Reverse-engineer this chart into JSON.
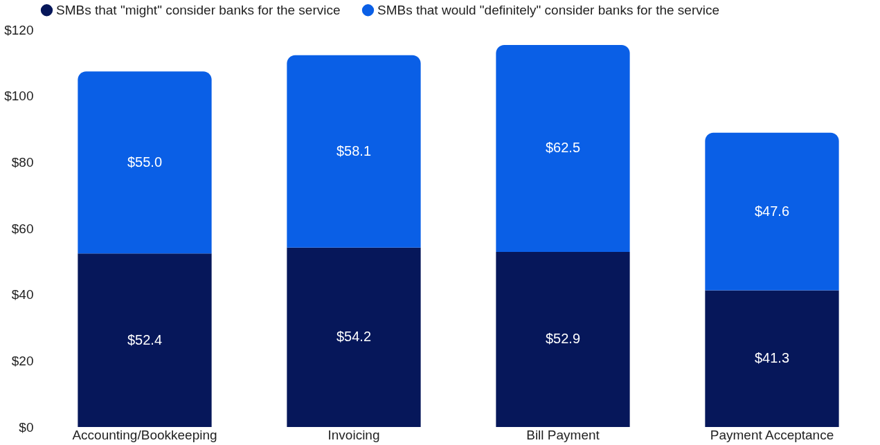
{
  "chart_data": {
    "type": "bar",
    "stacked": true,
    "categories": [
      "Accounting/Bookkeeping",
      "Invoicing",
      "Bill Payment",
      "Payment Acceptance"
    ],
    "series": [
      {
        "name": "SMBs that \"might\" consider banks for the service",
        "color": "#06175a",
        "values": [
          52.4,
          54.2,
          52.9,
          41.3
        ],
        "value_labels": [
          "$52.4",
          "$54.2",
          "$52.9",
          "$41.3"
        ]
      },
      {
        "name": "SMBs that would \"definitely\" consider banks for the service",
        "color": "#0a5fe6",
        "values": [
          55.0,
          58.1,
          62.5,
          47.6
        ],
        "value_labels": [
          "$55.0",
          "$58.1",
          "$62.5",
          "$47.6"
        ]
      }
    ],
    "ylim": [
      0,
      120
    ],
    "yticks": [
      {
        "value": 0,
        "label": "$0"
      },
      {
        "value": 20,
        "label": "$20"
      },
      {
        "value": 40,
        "label": "$40"
      },
      {
        "value": 60,
        "label": "$60"
      },
      {
        "value": 80,
        "label": "$80"
      },
      {
        "value": 100,
        "label": "$100"
      },
      {
        "value": 120,
        "label": "$120"
      }
    ],
    "grid": false,
    "legend": "top"
  }
}
